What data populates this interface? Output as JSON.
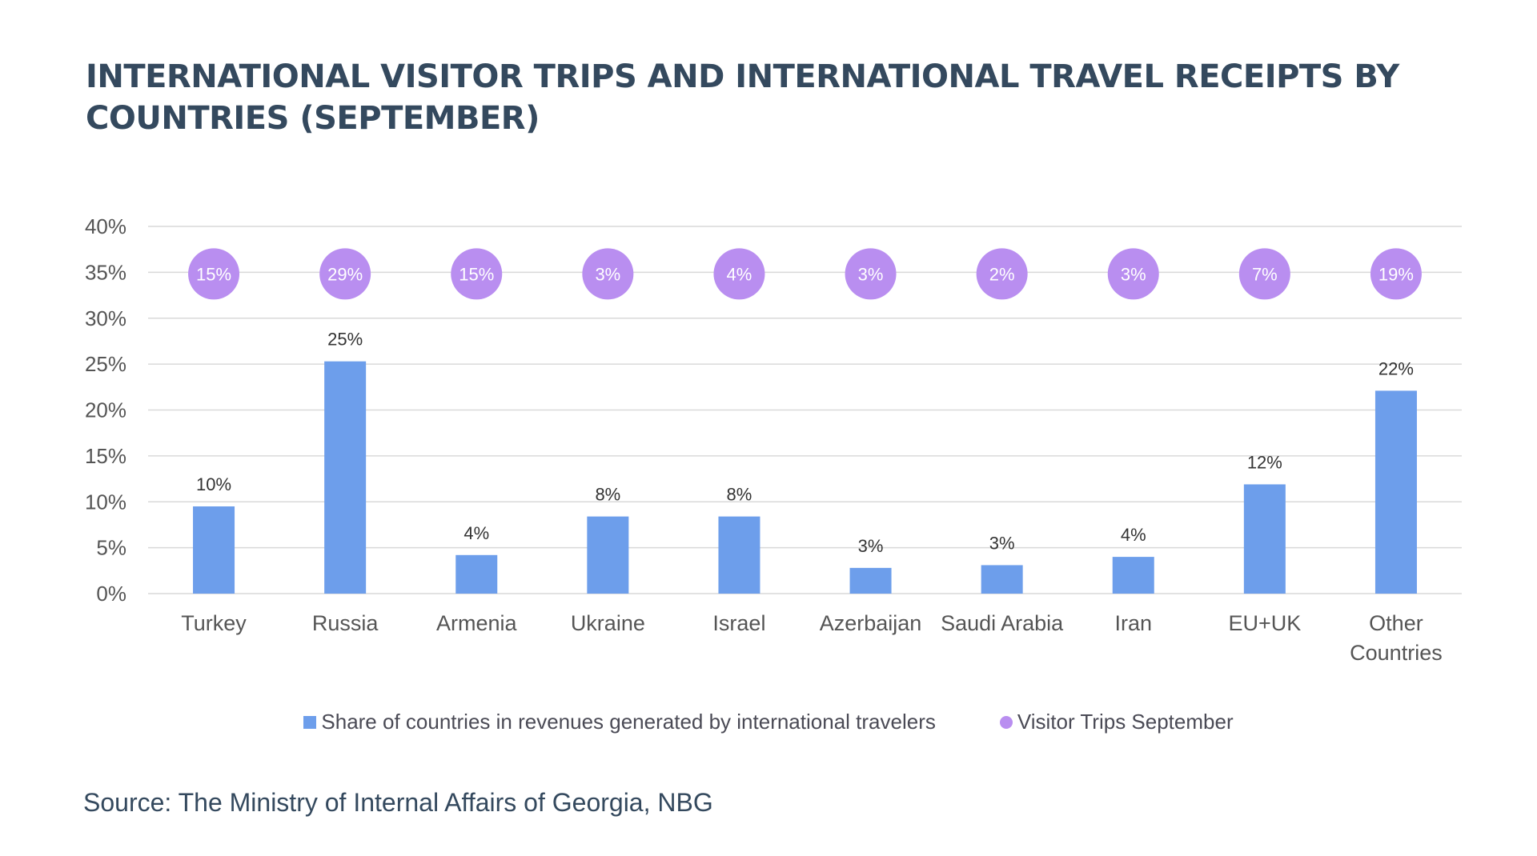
{
  "title": "INTERNATIONAL VISITOR TRIPS AND INTERNATIONAL TRAVEL RECEIPTS BY COUNTRIES (SEPTEMBER)",
  "source": "Source: The Ministry of Internal Affairs of Georgia, NBG",
  "colors": {
    "bar": "#6d9eeb",
    "bubble": "#b98ef0",
    "title": "#34495e",
    "grid": "#d9d9d9"
  },
  "chart_data": {
    "type": "bar",
    "categories": [
      "Turkey",
      "Russia",
      "Armenia",
      "Ukraine",
      "Israel",
      "Azerbaijan",
      "Saudi Arabia",
      "Iran",
      "EU+UK",
      "Other Countries"
    ],
    "category_lines": [
      [
        "Turkey"
      ],
      [
        "Russia"
      ],
      [
        "Armenia"
      ],
      [
        "Ukraine"
      ],
      [
        "Israel"
      ],
      [
        "Azerbaijan"
      ],
      [
        "Saudi Arabia"
      ],
      [
        "Iran"
      ],
      [
        "EU+UK"
      ],
      [
        "Other",
        "Countries"
      ]
    ],
    "series": [
      {
        "name": "Share of countries in revenues generated by international travelers",
        "kind": "bar",
        "values": [
          9.5,
          25.3,
          4.2,
          8.4,
          8.4,
          2.8,
          3.1,
          4.0,
          11.9,
          22.1
        ],
        "labels": [
          "10%",
          "25%",
          "4%",
          "8%",
          "8%",
          "3%",
          "3%",
          "4%",
          "12%",
          "22%"
        ]
      },
      {
        "name": "Visitor Trips September",
        "kind": "bubble",
        "values": [
          15,
          29,
          15,
          3,
          4,
          3,
          2,
          3,
          7,
          19
        ],
        "labels": [
          "15%",
          "29%",
          "15%",
          "3%",
          "4%",
          "3%",
          "2%",
          "3%",
          "7%",
          "19%"
        ],
        "display_level": 35
      }
    ],
    "y_ticks": [
      "0%",
      "5%",
      "10%",
      "15%",
      "20%",
      "25%",
      "30%",
      "35%",
      "40%"
    ],
    "ylim": [
      0,
      40
    ],
    "legend": "bottom-center",
    "grid": true
  }
}
